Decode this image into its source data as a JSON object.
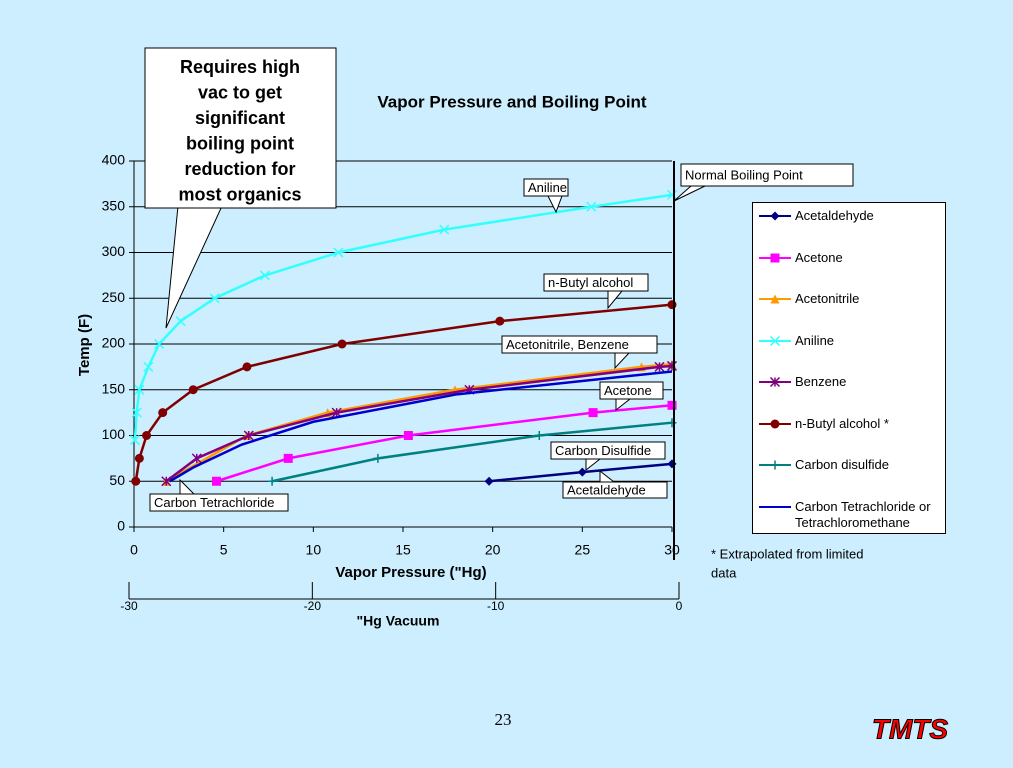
{
  "chart_data": {
    "type": "line",
    "title": "Vapor Pressure and Boiling Point",
    "xlabel": "Vapor Pressure (\"Hg)",
    "ylabel": "Temp (F)",
    "x2label": "\"Hg Vacuum",
    "xlim": [
      0,
      30
    ],
    "xticks": [
      0,
      5,
      10,
      15,
      20,
      25,
      30
    ],
    "ylim": [
      0,
      400
    ],
    "yticks": [
      0,
      50,
      100,
      150,
      200,
      250,
      300,
      350,
      400
    ],
    "x2lim": [
      -30,
      0
    ],
    "x2ticks": [
      -30,
      -20,
      -10,
      0
    ],
    "grid": true,
    "legend": "right",
    "series": [
      {
        "name": "Acetaldehyde",
        "color": "#000080",
        "marker": "diamond",
        "x": [
          19.8,
          25,
          30
        ],
        "values": [
          50,
          60,
          69
        ]
      },
      {
        "name": "Acetone",
        "color": "#ff00ff",
        "marker": "square",
        "x": [
          4.6,
          8.6,
          15.3,
          25.6,
          30
        ],
        "values": [
          50,
          75,
          100,
          125,
          133
        ]
      },
      {
        "name": "Acetonitrile",
        "color": "#ff9900",
        "marker": "triangle",
        "x": [
          1.8,
          6.3,
          10.8,
          17.9,
          28.3,
          30
        ],
        "values": [
          50,
          100,
          125,
          150,
          175,
          178
        ]
      },
      {
        "name": "Aniline",
        "color": "#33ffff",
        "marker": "x",
        "x": [
          0.05,
          0.15,
          0.3,
          0.8,
          1.4,
          2.6,
          4.5,
          7.3,
          11.4,
          17.3,
          25.5,
          30
        ],
        "values": [
          95,
          125,
          150,
          175,
          200,
          225,
          250,
          275,
          300,
          325,
          350,
          363
        ]
      },
      {
        "name": "Benzene",
        "color": "#800080",
        "marker": "star",
        "x": [
          1.8,
          3.5,
          6.4,
          11.3,
          18.7,
          29.3,
          30
        ],
        "values": [
          50,
          75,
          100,
          125,
          150,
          175,
          176
        ]
      },
      {
        "name": "n-Butyl alcohol *",
        "color": "#800000",
        "marker": "circle",
        "x": [
          0.1,
          0.3,
          0.7,
          1.6,
          3.3,
          6.3,
          11.6,
          20.4,
          30
        ],
        "values": [
          50,
          75,
          100,
          125,
          150,
          175,
          200,
          225,
          243
        ]
      },
      {
        "name": "Carbon disulfide",
        "color": "#008080",
        "marker": "plus",
        "x": [
          7.7,
          13.6,
          22.6,
          30
        ],
        "values": [
          50,
          75,
          100,
          114
        ]
      },
      {
        "name": "Carbon Tetrachloride or Tetrachloromethane",
        "color": "#0000cc",
        "marker": "none",
        "x": [
          2.0,
          3.3,
          6.0,
          10,
          18,
          30
        ],
        "values": [
          50,
          65,
          90,
          115,
          145,
          170
        ]
      }
    ],
    "annotations": [
      "Aniline",
      "n-Butyl alcohol",
      "Acetonitrile, Benzene",
      "Acetone",
      "Carbon Disulfide",
      "Acetaldehyde",
      "Carbon Tetrachloride",
      "Normal Boiling Point"
    ],
    "callout": [
      "Requires high",
      "vac to get",
      "significant",
      "boiling point",
      "reduction for",
      "most organics"
    ],
    "footnote": [
      "* Extrapolated from limited",
      "data"
    ]
  },
  "footer": {
    "page": "23",
    "logo": "TMTS"
  }
}
